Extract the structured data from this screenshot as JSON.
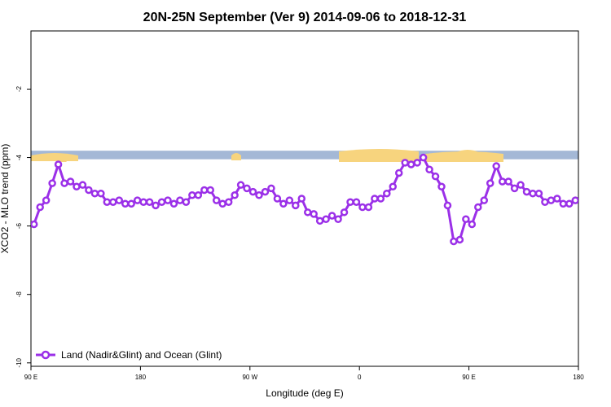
{
  "chart_data": {
    "type": "line",
    "title": "20N-25N September (Ver 9)   2014-09-06 to 2018-12-31",
    "xlabel": "Longitude (deg E)",
    "ylabel": "XCO2 - MLO trend (ppm)",
    "x_ticks": [
      {
        "value": 90,
        "label": "90 E"
      },
      {
        "value": 180,
        "label": "180"
      },
      {
        "value": 270,
        "label": "90 W"
      },
      {
        "value": 360,
        "label": "0"
      },
      {
        "value": 450,
        "label": "90 E"
      },
      {
        "value": 540,
        "label": "180"
      }
    ],
    "y_ticks": [
      {
        "value": -2,
        "label": "-2"
      },
      {
        "value": -4,
        "label": "-4"
      },
      {
        "value": -6,
        "label": "-6"
      },
      {
        "value": -8,
        "label": "-8"
      },
      {
        "value": -10,
        "label": "-10"
      }
    ],
    "xlim": [
      90,
      540
    ],
    "ylim": [
      -10.1,
      -0.3
    ],
    "grid": false,
    "legend_position": "bottom-left",
    "land_strip": {
      "y_top": -3.8,
      "y_bottom": -4.05,
      "ocean_color": "#a4b8d6",
      "land_color": "#f7d47e"
    },
    "series": [
      {
        "name": "Land (Nadir&Glint) and Ocean (Glint)",
        "color": "#9b30e8",
        "x": [
          92.5,
          97.5,
          102.5,
          107.5,
          112.5,
          117.5,
          122.5,
          127.5,
          132.5,
          137.5,
          142.5,
          147.5,
          152.5,
          157.5,
          162.5,
          167.5,
          172.5,
          177.5,
          182.5,
          187.5,
          192.5,
          197.5,
          202.5,
          207.5,
          212.5,
          217.5,
          222.5,
          227.5,
          232.5,
          237.5,
          242.5,
          247.5,
          252.5,
          257.5,
          262.5,
          267.5,
          272.5,
          277.5,
          282.5,
          287.5,
          292.5,
          297.5,
          302.5,
          307.5,
          312.5,
          317.5,
          322.5,
          327.5,
          332.5,
          337.5,
          342.5,
          347.5,
          352.5,
          357.5,
          362.5,
          367.5,
          372.5,
          377.5,
          382.5,
          387.5,
          392.5,
          397.5,
          402.5,
          407.5,
          412.5,
          417.5,
          422.5,
          427.5,
          432.5,
          437.5,
          442.5,
          447.5,
          452.5,
          457.5,
          462.5,
          467.5,
          472.5,
          477.5,
          482.5,
          487.5,
          492.5,
          497.5,
          502.5,
          507.5,
          512.5,
          517.5,
          522.5,
          527.5,
          532.5,
          537.5
        ],
        "values": [
          -5.95,
          -5.45,
          -5.25,
          -4.75,
          -4.2,
          -4.75,
          -4.7,
          -4.85,
          -4.8,
          -4.95,
          -5.05,
          -5.05,
          -5.3,
          -5.3,
          -5.25,
          -5.35,
          -5.35,
          -5.25,
          -5.3,
          -5.3,
          -5.4,
          -5.3,
          -5.25,
          -5.35,
          -5.25,
          -5.3,
          -5.1,
          -5.1,
          -4.95,
          -4.95,
          -5.25,
          -5.35,
          -5.3,
          -5.1,
          -4.8,
          -4.9,
          -5.0,
          -5.1,
          -5.0,
          -4.9,
          -5.2,
          -5.35,
          -5.25,
          -5.4,
          -5.2,
          -5.6,
          -5.65,
          -5.85,
          -5.8,
          -5.7,
          -5.8,
          -5.6,
          -5.3,
          -5.3,
          -5.45,
          -5.45,
          -5.2,
          -5.2,
          -5.05,
          -4.85,
          -4.45,
          -4.15,
          -4.2,
          -4.15,
          -4.0,
          -4.35,
          -4.55,
          -4.85,
          -5.4,
          -6.45,
          -6.4,
          -5.8,
          -5.95,
          -5.45,
          -5.25,
          -4.75,
          -4.25,
          -4.7,
          -4.7,
          -4.9,
          -4.8,
          -5.0,
          -5.05,
          -5.05,
          -5.3,
          -5.25,
          -5.2,
          -5.35,
          -5.35,
          -5.25
        ]
      }
    ]
  }
}
